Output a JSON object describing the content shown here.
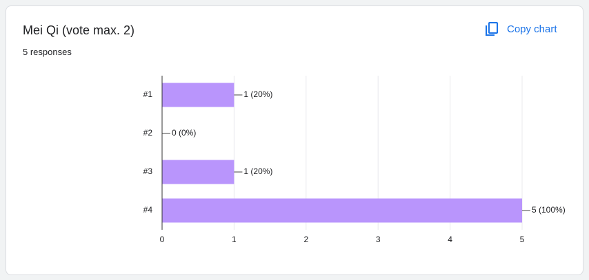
{
  "title": "Mei Qi (vote max. 2)",
  "subtitle": "5 responses",
  "copy_button": "Copy chart",
  "chart_data": {
    "type": "bar",
    "orientation": "horizontal",
    "categories": [
      "#1",
      "#2",
      "#3",
      "#4"
    ],
    "values": [
      1,
      0,
      1,
      5
    ],
    "value_labels": [
      "1 (20%)",
      "0 (0%)",
      "1 (20%)",
      "5 (100%)"
    ],
    "color": "#b995fc",
    "xlim": [
      0,
      5
    ],
    "xticks": [
      0,
      1,
      2,
      3,
      4,
      5
    ],
    "grid": true
  }
}
